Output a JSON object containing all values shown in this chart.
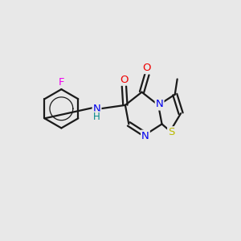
{
  "background_color": "#e8e8e8",
  "bond_color": "#1a1a1a",
  "atom_colors": {
    "F": "#ee00ee",
    "O": "#ee0000",
    "N": "#0000ee",
    "S": "#bbbb00",
    "H": "#008888",
    "C": "#1a1a1a"
  },
  "figsize": [
    3.0,
    3.0
  ],
  "dpi": 100,
  "lw": 1.6,
  "fontsize": 9.5
}
